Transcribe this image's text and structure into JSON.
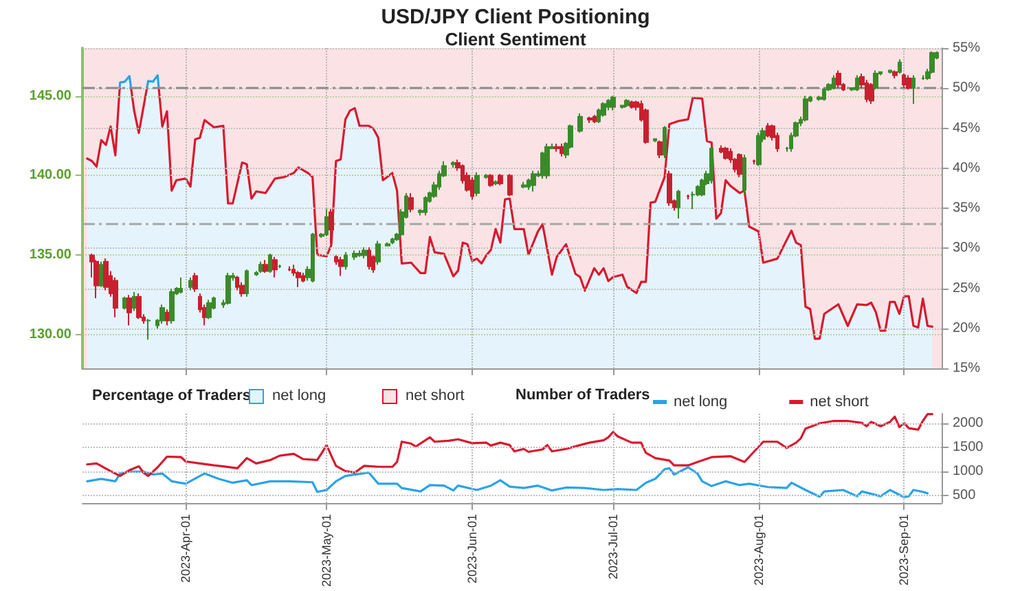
{
  "chart_data": [
    {
      "type": "candlestick",
      "title": "USD/JPY Client Positioning",
      "subtitle": "Client Sentiment",
      "legend_title": "Percentage of Traders",
      "legend": "bottom",
      "grid": true,
      "tick_labels": "y",
      "xlim": [
        "2023-03-10",
        "2023-09-09"
      ],
      "xticks": [
        {
          "value": "2023-04-01",
          "label": null
        },
        {
          "value": "2023-05-01",
          "label": null
        },
        {
          "value": "2023-06-01",
          "label": null
        },
        {
          "value": "2023-07-01",
          "label": null
        },
        {
          "value": "2023-08-01",
          "label": null
        },
        {
          "value": "2023-09-01",
          "label": null
        }
      ],
      "ylim": [
        127.9,
        148
      ],
      "yticks": [
        {
          "value": 130,
          "label": "130.00"
        },
        {
          "value": 135,
          "label": "135.00"
        },
        {
          "value": 140,
          "label": "140.00"
        },
        {
          "value": 145,
          "label": "145.00"
        }
      ],
      "y2lim": [
        15,
        55
      ],
      "y2ticks": [
        {
          "value": 15,
          "label": "15%"
        },
        {
          "value": 20,
          "label": "20%"
        },
        {
          "value": 25,
          "label": "25%"
        },
        {
          "value": 30,
          "label": "30%"
        },
        {
          "value": 35,
          "label": "35%"
        },
        {
          "value": 40,
          "label": "40%"
        },
        {
          "value": 45,
          "label": "45%"
        },
        {
          "value": 50,
          "label": "50%"
        },
        {
          "value": 55,
          "label": "55%"
        }
      ],
      "x": [
        "2023-03-12",
        "2023-03-13",
        "2023-03-14",
        "2023-03-15",
        "2023-03-16",
        "2023-03-17",
        "2023-03-19",
        "2023-03-20",
        "2023-03-21",
        "2023-03-22",
        "2023-03-23",
        "2023-03-24",
        "2023-03-26",
        "2023-03-27",
        "2023-03-28",
        "2023-03-29",
        "2023-03-30",
        "2023-03-31",
        "2023-04-02",
        "2023-04-03",
        "2023-04-04",
        "2023-04-05",
        "2023-04-06",
        "2023-04-07",
        "2023-04-09",
        "2023-04-10",
        "2023-04-11",
        "2023-04-12",
        "2023-04-13",
        "2023-04-14",
        "2023-04-16",
        "2023-04-17",
        "2023-04-18",
        "2023-04-19",
        "2023-04-20",
        "2023-04-21",
        "2023-04-23",
        "2023-04-24",
        "2023-04-25",
        "2023-04-26",
        "2023-04-27",
        "2023-04-28",
        "2023-04-30",
        "2023-05-01",
        "2023-05-02",
        "2023-05-03",
        "2023-05-04",
        "2023-05-05",
        "2023-05-07",
        "2023-05-08",
        "2023-05-09",
        "2023-05-10",
        "2023-05-11",
        "2023-05-12",
        "2023-05-14",
        "2023-05-15",
        "2023-05-16",
        "2023-05-17",
        "2023-05-18",
        "2023-05-19",
        "2023-05-21",
        "2023-05-22",
        "2023-05-23",
        "2023-05-24",
        "2023-05-25",
        "2023-05-26",
        "2023-05-28",
        "2023-05-29",
        "2023-05-30",
        "2023-05-31",
        "2023-06-01",
        "2023-06-02",
        "2023-06-04",
        "2023-06-05",
        "2023-06-06",
        "2023-06-07",
        "2023-06-09",
        "2023-06-12",
        "2023-06-13",
        "2023-06-14",
        "2023-06-15",
        "2023-06-16",
        "2023-06-17",
        "2023-06-18",
        "2023-06-19",
        "2023-06-20",
        "2023-06-21",
        "2023-06-22",
        "2023-06-24",
        "2023-06-26",
        "2023-06-27",
        "2023-06-28",
        "2023-06-29",
        "2023-06-30",
        "2023-07-01",
        "2023-07-03",
        "2023-07-04",
        "2023-07-05",
        "2023-07-06",
        "2023-07-07",
        "2023-07-08",
        "2023-07-10",
        "2023-07-11",
        "2023-07-12",
        "2023-07-13",
        "2023-07-14",
        "2023-07-15",
        "2023-07-17",
        "2023-07-18",
        "2023-07-19",
        "2023-07-20",
        "2023-07-21",
        "2023-07-22",
        "2023-07-24",
        "2023-07-25",
        "2023-07-26",
        "2023-07-27",
        "2023-07-28",
        "2023-07-29",
        "2023-07-31",
        "2023-08-01",
        "2023-08-02",
        "2023-08-03",
        "2023-08-04",
        "2023-08-05",
        "2023-08-07",
        "2023-08-08",
        "2023-08-09",
        "2023-08-10",
        "2023-08-11",
        "2023-08-12",
        "2023-08-14",
        "2023-08-15",
        "2023-08-16",
        "2023-08-17",
        "2023-08-18",
        "2023-08-19",
        "2023-08-21",
        "2023-08-22",
        "2023-08-23",
        "2023-08-24",
        "2023-08-25",
        "2023-08-26",
        "2023-08-27",
        "2023-08-29",
        "2023-08-30",
        "2023-08-31",
        "2023-09-01",
        "2023-09-02",
        "2023-09-03",
        "2023-09-05",
        "2023-09-06",
        "2023-09-07",
        "2023-09-08"
      ],
      "ohlc": [
        [
          135.0,
          135.1,
          133.6,
          134.6
        ],
        [
          134.6,
          134.7,
          132.3,
          133.1
        ],
        [
          133.1,
          134.6,
          133.0,
          134.4
        ],
        [
          134.6,
          134.8,
          132.8,
          133.0
        ],
        [
          133.7,
          134.0,
          132.4,
          132.6
        ],
        [
          133.4,
          133.6,
          131.1,
          131.7
        ],
        [
          131.7,
          132.4,
          131.6,
          132.3
        ],
        [
          132.3,
          132.5,
          130.6,
          131.4
        ],
        [
          131.7,
          132.7,
          131.5,
          132.4
        ],
        [
          132.4,
          132.6,
          131.0,
          131.1
        ],
        [
          131.1,
          131.3,
          130.7,
          130.9
        ],
        [
          130.9,
          131.0,
          129.7,
          130.9
        ],
        [
          130.6,
          131.0,
          130.4,
          130.9
        ],
        [
          130.9,
          131.9,
          130.7,
          131.7
        ],
        [
          131.4,
          131.6,
          130.6,
          130.9
        ],
        [
          130.9,
          132.9,
          130.7,
          132.7
        ],
        [
          132.6,
          133.0,
          132.5,
          132.9
        ],
        [
          132.7,
          133.6,
          132.6,
          132.9
        ],
        [
          133.0,
          133.6,
          132.8,
          133.4
        ],
        [
          133.7,
          133.9,
          132.7,
          132.9
        ],
        [
          132.4,
          132.6,
          131.4,
          131.6
        ],
        [
          131.7,
          131.9,
          130.6,
          131.1
        ],
        [
          131.1,
          132.2,
          131.0,
          132.0
        ],
        [
          131.7,
          132.4,
          131.6,
          132.3
        ],
        [
          131.9,
          132.2,
          131.7,
          132.0
        ],
        [
          132.0,
          133.9,
          131.9,
          133.7
        ],
        [
          133.6,
          133.9,
          133.4,
          133.7
        ],
        [
          133.6,
          133.7,
          132.8,
          133.0
        ],
        [
          133.1,
          133.3,
          132.4,
          132.6
        ],
        [
          132.6,
          134.1,
          132.4,
          134.0
        ],
        [
          133.8,
          134.0,
          133.7,
          133.9
        ],
        [
          134.0,
          134.6,
          133.9,
          134.4
        ],
        [
          134.4,
          134.7,
          133.9,
          134.0
        ],
        [
          134.0,
          135.1,
          133.9,
          135.0
        ],
        [
          134.7,
          134.9,
          133.6,
          134.1
        ],
        [
          134.3,
          134.4,
          134.2,
          134.3
        ],
        [
          134.1,
          134.3,
          134.0,
          134.1
        ],
        [
          134.1,
          134.4,
          133.7,
          133.9
        ],
        [
          133.9,
          134.0,
          133.0,
          133.6
        ],
        [
          133.7,
          133.9,
          133.3,
          133.4
        ],
        [
          133.6,
          134.3,
          133.4,
          134.1
        ],
        [
          133.4,
          136.4,
          133.3,
          136.3
        ],
        [
          136.2,
          136.4,
          136.1,
          136.3
        ],
        [
          136.3,
          137.9,
          136.2,
          137.4
        ],
        [
          137.7,
          137.9,
          135.7,
          136.6
        ],
        [
          134.9,
          135.0,
          134.4,
          134.6
        ],
        [
          134.7,
          134.9,
          133.7,
          134.3
        ],
        [
          134.3,
          135.2,
          134.1,
          135.0
        ],
        [
          134.9,
          135.3,
          134.7,
          135.1
        ],
        [
          135.0,
          135.3,
          134.9,
          135.1
        ],
        [
          135.0,
          135.5,
          134.8,
          135.3
        ],
        [
          135.3,
          135.5,
          134.1,
          134.3
        ],
        [
          134.9,
          135.0,
          133.9,
          134.1
        ],
        [
          134.6,
          135.9,
          134.4,
          135.7
        ],
        [
          135.6,
          135.8,
          135.6,
          135.7
        ],
        [
          135.8,
          136.1,
          135.7,
          136.0
        ],
        [
          136.0,
          136.4,
          135.9,
          136.3
        ],
        [
          136.3,
          137.9,
          136.2,
          137.7
        ],
        [
          137.4,
          138.9,
          137.3,
          138.7
        ],
        [
          138.6,
          138.9,
          137.7,
          137.9
        ],
        [
          137.7,
          137.9,
          137.5,
          137.8
        ],
        [
          137.7,
          138.7,
          137.5,
          138.6
        ],
        [
          138.4,
          139.0,
          138.3,
          138.9
        ],
        [
          138.7,
          139.6,
          138.6,
          139.4
        ],
        [
          139.3,
          140.3,
          139.1,
          140.1
        ],
        [
          140.0,
          140.9,
          139.9,
          140.6
        ],
        [
          140.7,
          140.9,
          140.5,
          140.8
        ],
        [
          140.8,
          141.0,
          140.3,
          140.5
        ],
        [
          140.6,
          140.7,
          139.5,
          139.7
        ],
        [
          140.0,
          140.2,
          139.0,
          139.1
        ],
        [
          139.7,
          139.9,
          138.5,
          138.7
        ],
        [
          138.9,
          140.2,
          138.7,
          140.0
        ],
        [
          139.9,
          140.1,
          139.8,
          140.0
        ],
        [
          140.0,
          140.1,
          139.3,
          139.4
        ],
        [
          139.5,
          139.7,
          139.4,
          139.6
        ],
        [
          140.0,
          140.1,
          139.4,
          139.5
        ],
        [
          140.0,
          140.1,
          138.7,
          138.8
        ],
        [
          139.3,
          139.6,
          139.2,
          139.4
        ],
        [
          139.3,
          139.8,
          139.1,
          139.7
        ],
        [
          139.4,
          140.3,
          139.0,
          140.1
        ],
        [
          140.0,
          140.3,
          139.9,
          140.1
        ],
        [
          140.0,
          141.5,
          139.8,
          141.4
        ],
        [
          140.0,
          142.0,
          139.8,
          141.8
        ],
        [
          141.7,
          142.0,
          141.7,
          141.8
        ],
        [
          141.8,
          142.0,
          141.5,
          141.7
        ],
        [
          141.8,
          142.0,
          141.2,
          141.4
        ],
        [
          141.3,
          142.1,
          141.1,
          142.0
        ],
        [
          141.8,
          143.2,
          141.7,
          143.1
        ],
        [
          142.8,
          143.9,
          142.7,
          143.7
        ],
        [
          143.6,
          143.7,
          143.3,
          143.5
        ],
        [
          143.7,
          143.8,
          143.3,
          143.4
        ],
        [
          143.4,
          144.2,
          143.3,
          144.1
        ],
        [
          143.8,
          144.6,
          143.7,
          144.5
        ],
        [
          144.3,
          144.8,
          144.1,
          144.7
        ],
        [
          144.3,
          145.0,
          144.1,
          144.9
        ],
        [
          144.3,
          144.4,
          144.2,
          144.4
        ],
        [
          144.4,
          144.8,
          144.3,
          144.7
        ],
        [
          144.6,
          144.7,
          144.2,
          144.3
        ],
        [
          144.6,
          144.7,
          144.1,
          144.3
        ],
        [
          144.5,
          144.7,
          143.4,
          143.5
        ],
        [
          144.1,
          144.2,
          142.0,
          142.1
        ],
        [
          142.2,
          142.3,
          142.1,
          142.3
        ],
        [
          142.1,
          142.2,
          141.1,
          141.3
        ],
        [
          141.3,
          143.1,
          141.1,
          143.0
        ],
        [
          140.1,
          140.3,
          138.1,
          138.3
        ],
        [
          138.4,
          138.5,
          137.8,
          138.0
        ],
        [
          138.0,
          139.1,
          137.3,
          139.0
        ],
        [
          138.7,
          138.8,
          138.5,
          138.7
        ],
        [
          138.8,
          139.0,
          137.9,
          138.8
        ],
        [
          138.8,
          139.4,
          138.7,
          139.3
        ],
        [
          138.8,
          139.8,
          138.7,
          139.7
        ],
        [
          139.5,
          140.3,
          139.4,
          140.1
        ],
        [
          139.7,
          141.8,
          139.5,
          141.7
        ],
        [
          141.7,
          141.9,
          141.4,
          141.5
        ],
        [
          141.7,
          141.8,
          141.0,
          141.1
        ],
        [
          141.5,
          141.7,
          140.8,
          141.0
        ],
        [
          141.0,
          141.1,
          140.2,
          140.4
        ],
        [
          141.3,
          141.4,
          139.9,
          140.1
        ],
        [
          139.1,
          141.3,
          138.8,
          141.1
        ],
        [
          140.9,
          141.0,
          140.7,
          140.9
        ],
        [
          140.7,
          142.7,
          140.6,
          142.5
        ],
        [
          142.3,
          143.0,
          142.1,
          142.8
        ],
        [
          143.1,
          143.3,
          142.4,
          142.5
        ],
        [
          143.1,
          143.2,
          142.2,
          142.4
        ],
        [
          142.5,
          142.7,
          141.5,
          141.7
        ],
        [
          141.7,
          141.8,
          141.5,
          141.7
        ],
        [
          141.7,
          142.7,
          141.5,
          142.5
        ],
        [
          142.5,
          143.4,
          142.4,
          143.3
        ],
        [
          143.3,
          143.7,
          143.1,
          143.5
        ],
        [
          143.5,
          145.0,
          143.4,
          144.8
        ],
        [
          144.7,
          145.0,
          144.6,
          144.9
        ],
        [
          144.8,
          145.0,
          144.7,
          144.9
        ],
        [
          144.8,
          145.5,
          144.7,
          145.4
        ],
        [
          145.4,
          145.8,
          145.3,
          145.7
        ],
        [
          145.5,
          146.3,
          145.4,
          146.1
        ],
        [
          146.4,
          146.6,
          145.5,
          145.7
        ],
        [
          145.7,
          145.8,
          145.3,
          145.4
        ],
        [
          145.4,
          145.5,
          145.3,
          145.5
        ],
        [
          145.4,
          146.3,
          145.3,
          146.1
        ],
        [
          146.2,
          146.4,
          145.5,
          145.7
        ],
        [
          145.8,
          146.0,
          144.6,
          144.8
        ],
        [
          145.7,
          145.8,
          144.5,
          144.7
        ],
        [
          145.5,
          146.6,
          145.4,
          146.4
        ],
        [
          146.4,
          146.5,
          146.3,
          146.5
        ],
        [
          146.5,
          146.6,
          146.4,
          146.6
        ],
        [
          146.5,
          146.6,
          146.1,
          146.3
        ],
        [
          146.5,
          147.3,
          146.4,
          147.1
        ],
        [
          146.3,
          146.4,
          145.5,
          145.7
        ],
        [
          146.1,
          146.3,
          145.4,
          145.5
        ],
        [
          145.5,
          146.3,
          144.5,
          146.1
        ],
        [
          146.1,
          146.3,
          146.0,
          146.1
        ],
        [
          146.1,
          146.7,
          146.0,
          146.5
        ],
        [
          146.5,
          147.8,
          146.4,
          147.7
        ],
        [
          147.4,
          147.8,
          147.3,
          147.7
        ]
      ],
      "series": [
        {
          "name": "net long",
          "type": "area",
          "axis": "y2",
          "color": "#29a3e8",
          "x": [
            "2023-03-11",
            "2023-03-12",
            "2023-03-13",
            "2023-03-14",
            "2023-03-15",
            "2023-03-16",
            "2023-03-17",
            "2023-03-18",
            "2023-03-19",
            "2023-03-20",
            "2023-03-21",
            "2023-03-22",
            "2023-03-24",
            "2023-03-25",
            "2023-03-26",
            "2023-03-27",
            "2023-03-28",
            "2023-03-29",
            "2023-03-30",
            "2023-04-01",
            "2023-04-02",
            "2023-04-03",
            "2023-04-04",
            "2023-04-05",
            "2023-04-07",
            "2023-04-09",
            "2023-04-10",
            "2023-04-11",
            "2023-04-13",
            "2023-04-14",
            "2023-04-15",
            "2023-04-16",
            "2023-04-18",
            "2023-04-20",
            "2023-04-22",
            "2023-04-24",
            "2023-04-25",
            "2023-04-27",
            "2023-04-28",
            "2023-04-29",
            "2023-05-01",
            "2023-05-02",
            "2023-05-03",
            "2023-05-04",
            "2023-05-05",
            "2023-05-06",
            "2023-05-07",
            "2023-05-08",
            "2023-05-10",
            "2023-05-11",
            "2023-05-12",
            "2023-05-13",
            "2023-05-15",
            "2023-05-16",
            "2023-05-17",
            "2023-05-19",
            "2023-05-21",
            "2023-05-22",
            "2023-05-23",
            "2023-05-24",
            "2023-05-26",
            "2023-05-28",
            "2023-05-29",
            "2023-05-30",
            "2023-05-31",
            "2023-06-01",
            "2023-06-02",
            "2023-06-03",
            "2023-06-04",
            "2023-06-05",
            "2023-06-06",
            "2023-06-07",
            "2023-06-08",
            "2023-06-09",
            "2023-06-10",
            "2023-06-12",
            "2023-06-13",
            "2023-06-15",
            "2023-06-16",
            "2023-06-18",
            "2023-06-19",
            "2023-06-21",
            "2023-06-23",
            "2023-06-24",
            "2023-06-25",
            "2023-06-27",
            "2023-06-28",
            "2023-06-29",
            "2023-06-30",
            "2023-07-01",
            "2023-07-03",
            "2023-07-04",
            "2023-07-06",
            "2023-07-07",
            "2023-07-08",
            "2023-07-09",
            "2023-07-10",
            "2023-07-12",
            "2023-07-13",
            "2023-07-15",
            "2023-07-17",
            "2023-07-18",
            "2023-07-20",
            "2023-07-21",
            "2023-07-22",
            "2023-07-23",
            "2023-07-24",
            "2023-07-25",
            "2023-07-26",
            "2023-07-28",
            "2023-07-29",
            "2023-07-30",
            "2023-07-31",
            "2023-08-01",
            "2023-08-02",
            "2023-08-05",
            "2023-08-08",
            "2023-08-09",
            "2023-08-10",
            "2023-08-11",
            "2023-08-12",
            "2023-08-13",
            "2023-08-14",
            "2023-08-15",
            "2023-08-18",
            "2023-08-20",
            "2023-08-22",
            "2023-08-24",
            "2023-08-25",
            "2023-08-26",
            "2023-08-27",
            "2023-08-28",
            "2023-08-29",
            "2023-08-30",
            "2023-08-31",
            "2023-09-01",
            "2023-09-02",
            "2023-09-03",
            "2023-09-04",
            "2023-09-05",
            "2023-09-06",
            "2023-09-07"
          ],
          "values": [
            41.2,
            40.9,
            40.2,
            43.5,
            42.9,
            45.2,
            41.6,
            50.7,
            50.8,
            51.5,
            47.2,
            44.4,
            50.9,
            50.8,
            51.6,
            45.2,
            47.1,
            37.2,
            38.5,
            38.7,
            37.7,
            43.6,
            43.8,
            46.0,
            45.1,
            45.3,
            35.6,
            35.6,
            40.7,
            40.5,
            36.2,
            37.1,
            36.9,
            38.7,
            38.9,
            39.4,
            40.1,
            39.4,
            38.9,
            29.2,
            29.0,
            30.4,
            40.9,
            41.1,
            46.1,
            47.2,
            47.5,
            45.3,
            45.3,
            44.9,
            43.8,
            38.5,
            39.4,
            37.2,
            28.1,
            28.2,
            26.9,
            26.9,
            31.4,
            29.5,
            29.3,
            26.5,
            27.2,
            30.7,
            30.5,
            28.4,
            28.7,
            28.1,
            29.1,
            29.8,
            32.4,
            30.7,
            36.1,
            36.2,
            32.4,
            32.4,
            29.2,
            32.1,
            33.0,
            26.7,
            28.9,
            30.5,
            26.8,
            26.4,
            24.7,
            27.5,
            26.7,
            27.5,
            25.9,
            26.4,
            26.7,
            25.2,
            24.4,
            25.8,
            25.8,
            35.7,
            35.8,
            38.9,
            45.5,
            45.9,
            46.1,
            48.8,
            48.7,
            43.4,
            43.2,
            33.7,
            34.4,
            38.5,
            37.8,
            36.9,
            37.2,
            32.7,
            32.4,
            32.1,
            28.2,
            28.7,
            32.2,
            30.7,
            30.4,
            22.7,
            22.4,
            18.7,
            18.7,
            21.8,
            23.0,
            20.3,
            23.0,
            22.9,
            23.2,
            22.0,
            19.7,
            19.7,
            23.3,
            23.3,
            21.8,
            24.0,
            24.0,
            20.3,
            20.1,
            23.7,
            20.3,
            20.2
          ]
        }
      ],
      "ref_lines": [
        {
          "axis": "y2",
          "value": 50,
          "color": "#8c8c8c",
          "line_style": "dashed"
        },
        {
          "axis": "y2",
          "value": 33,
          "color": "#a6a6a6",
          "line_style": "dashed"
        }
      ],
      "bands": [
        {
          "axis": "y2",
          "from": 15,
          "to": 55,
          "label": "net short",
          "color": "#fbe3e5"
        }
      ]
    },
    {
      "type": "line",
      "legend_title": "Number of Traders",
      "legend": "top",
      "grid": true,
      "xlim": [
        "2023-03-10",
        "2023-09-09"
      ],
      "xticks": [
        {
          "value": "2023-04-01",
          "label": "2023-Apr-01"
        },
        {
          "value": "2023-05-01",
          "label": "2023-May-01"
        },
        {
          "value": "2023-06-01",
          "label": "2023-Jun-01"
        },
        {
          "value": "2023-07-01",
          "label": "2023-Jul-01"
        },
        {
          "value": "2023-08-01",
          "label": "2023-Aug-01"
        },
        {
          "value": "2023-09-01",
          "label": "2023-Sep-01"
        }
      ],
      "y2lim": [
        350,
        2200
      ],
      "y2ticks": [
        500,
        1000,
        1500,
        2000
      ],
      "series": [
        {
          "name": "net long",
          "axis": "y2",
          "color": "#29a3e8",
          "x": [
            "2023-03-11",
            "2023-03-14",
            "2023-03-17",
            "2023-03-18",
            "2023-03-20",
            "2023-03-23",
            "2023-03-25",
            "2023-03-27",
            "2023-03-29",
            "2023-04-01",
            "2023-04-04",
            "2023-04-05",
            "2023-04-08",
            "2023-04-11",
            "2023-04-14",
            "2023-04-15",
            "2023-04-19",
            "2023-04-23",
            "2023-04-28",
            "2023-04-29",
            "2023-05-01",
            "2023-05-03",
            "2023-05-05",
            "2023-05-10",
            "2023-05-12",
            "2023-05-16",
            "2023-05-17",
            "2023-05-21",
            "2023-05-23",
            "2023-05-26",
            "2023-05-28",
            "2023-05-29",
            "2023-06-02",
            "2023-06-05",
            "2023-06-07",
            "2023-06-09",
            "2023-06-12",
            "2023-06-15",
            "2023-06-18",
            "2023-06-21",
            "2023-06-25",
            "2023-06-29",
            "2023-07-02",
            "2023-07-06",
            "2023-07-08",
            "2023-07-10",
            "2023-07-12",
            "2023-07-13",
            "2023-07-14",
            "2023-07-17",
            "2023-07-19",
            "2023-07-20",
            "2023-07-22",
            "2023-07-25",
            "2023-07-28",
            "2023-07-30",
            "2023-08-03",
            "2023-08-07",
            "2023-08-08",
            "2023-08-11",
            "2023-08-14",
            "2023-08-15",
            "2023-08-19",
            "2023-08-22",
            "2023-08-23",
            "2023-08-27",
            "2023-08-29",
            "2023-09-01",
            "2023-09-02",
            "2023-09-03",
            "2023-09-05",
            "2023-09-06"
          ],
          "values": [
            800,
            850,
            800,
            960,
            1000,
            1000,
            940,
            960,
            800,
            750,
            910,
            960,
            850,
            770,
            820,
            720,
            800,
            800,
            780,
            580,
            620,
            800,
            910,
            980,
            750,
            750,
            660,
            590,
            720,
            710,
            610,
            710,
            620,
            710,
            820,
            690,
            660,
            710,
            610,
            670,
            660,
            620,
            640,
            620,
            770,
            850,
            1050,
            1070,
            940,
            1090,
            960,
            800,
            700,
            800,
            720,
            750,
            680,
            660,
            770,
            620,
            480,
            590,
            620,
            490,
            590,
            490,
            620,
            470,
            490,
            620,
            580,
            550
          ]
        },
        {
          "name": "net short",
          "axis": "y2",
          "color": "#d9182e",
          "x": [
            "2023-03-11",
            "2023-03-13",
            "2023-03-16",
            "2023-03-18",
            "2023-03-20",
            "2023-03-22",
            "2023-03-23",
            "2023-03-24",
            "2023-03-26",
            "2023-03-28",
            "2023-03-31",
            "2023-04-01",
            "2023-04-04",
            "2023-04-07",
            "2023-04-09",
            "2023-04-12",
            "2023-04-14",
            "2023-04-16",
            "2023-04-19",
            "2023-04-21",
            "2023-04-24",
            "2023-04-26",
            "2023-04-29",
            "2023-04-30",
            "2023-05-01",
            "2023-05-02",
            "2023-05-03",
            "2023-05-05",
            "2023-05-07",
            "2023-05-09",
            "2023-05-12",
            "2023-05-15",
            "2023-05-16",
            "2023-05-17",
            "2023-05-19",
            "2023-05-20",
            "2023-05-23",
            "2023-05-24",
            "2023-05-27",
            "2023-05-29",
            "2023-06-01",
            "2023-06-04",
            "2023-06-05",
            "2023-06-07",
            "2023-06-09",
            "2023-06-10",
            "2023-06-12",
            "2023-06-13",
            "2023-06-16",
            "2023-06-17",
            "2023-06-18",
            "2023-06-21",
            "2023-06-24",
            "2023-06-26",
            "2023-06-29",
            "2023-06-30",
            "2023-07-01",
            "2023-07-02",
            "2023-07-05",
            "2023-07-07",
            "2023-07-08",
            "2023-07-10",
            "2023-07-13",
            "2023-07-14",
            "2023-07-17",
            "2023-07-19",
            "2023-07-22",
            "2023-07-26",
            "2023-07-29",
            "2023-07-31",
            "2023-08-02",
            "2023-08-05",
            "2023-08-07",
            "2023-08-09",
            "2023-08-10",
            "2023-08-11",
            "2023-08-14",
            "2023-08-17",
            "2023-08-20",
            "2023-08-23",
            "2023-08-24",
            "2023-08-25",
            "2023-08-27",
            "2023-08-29",
            "2023-08-30",
            "2023-08-31",
            "2023-09-01",
            "2023-09-02",
            "2023-09-04",
            "2023-09-05",
            "2023-09-06",
            "2023-09-07"
          ],
          "values": [
            1150,
            1170,
            1010,
            910,
            1030,
            1110,
            980,
            910,
            1090,
            1310,
            1300,
            1210,
            1170,
            1130,
            1110,
            1070,
            1280,
            1170,
            1240,
            1330,
            1370,
            1260,
            1240,
            1390,
            1550,
            1330,
            1120,
            1010,
            980,
            1120,
            1100,
            1100,
            1200,
            1620,
            1580,
            1520,
            1710,
            1620,
            1640,
            1670,
            1590,
            1600,
            1540,
            1600,
            1550,
            1420,
            1470,
            1410,
            1460,
            1550,
            1420,
            1470,
            1550,
            1600,
            1650,
            1710,
            1820,
            1730,
            1600,
            1600,
            1390,
            1280,
            1230,
            1130,
            1130,
            1200,
            1300,
            1320,
            1200,
            1410,
            1620,
            1620,
            1490,
            1600,
            1690,
            1890,
            2000,
            2050,
            2050,
            2010,
            1940,
            2030,
            1940,
            2030,
            2140,
            1920,
            2010,
            1900,
            1870,
            2050,
            2190,
            2190
          ]
        }
      ]
    }
  ]
}
